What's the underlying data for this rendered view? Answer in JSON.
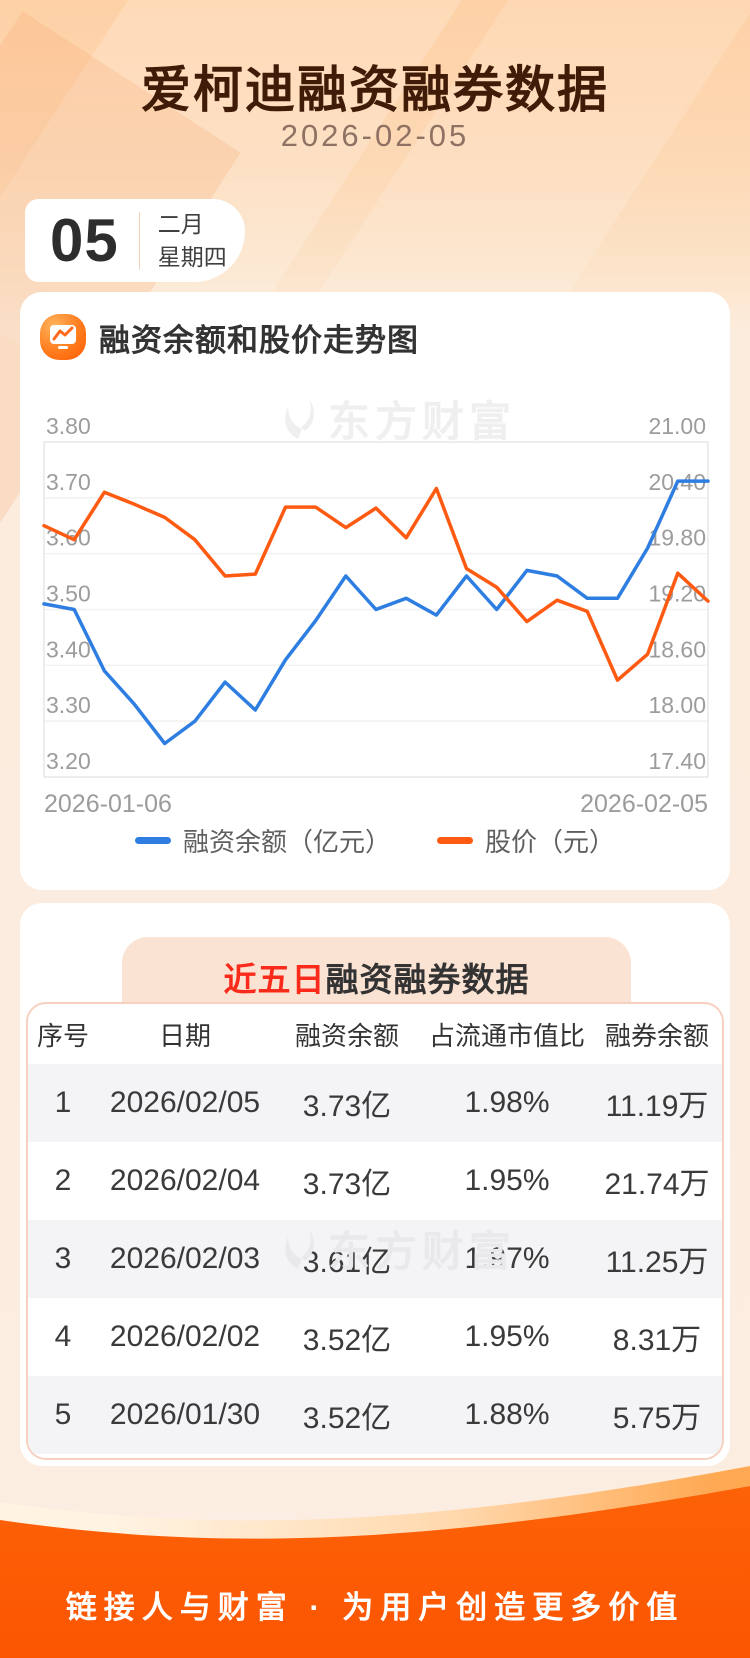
{
  "header": {
    "title": "爱柯迪融资融券数据",
    "date": "2026-02-05"
  },
  "date_card": {
    "day": "05",
    "month": "二月",
    "weekday": "星期四"
  },
  "chart_section": {
    "title": "融资余额和股价走势图",
    "watermark": "东方财富",
    "x_start_label": "2026-01-06",
    "x_end_label": "2026-02-05",
    "legend": [
      {
        "label": "融资余额（亿元）",
        "color": "#2e7ee2"
      },
      {
        "label": "股价（元）",
        "color": "#ff5a11"
      }
    ]
  },
  "chart_data": {
    "type": "line",
    "title": "融资余额和股价走势图",
    "grid": true,
    "legend_position": "bottom",
    "x": [
      "2026-01-06",
      "2026-01-07",
      "2026-01-08",
      "2026-01-09",
      "2026-01-12",
      "2026-01-13",
      "2026-01-14",
      "2026-01-15",
      "2026-01-16",
      "2026-01-19",
      "2026-01-20",
      "2026-01-21",
      "2026-01-22",
      "2026-01-23",
      "2026-01-26",
      "2026-01-27",
      "2026-01-28",
      "2026-01-29",
      "2026-01-30",
      "2026-02-02",
      "2026-02-03",
      "2026-02-04",
      "2026-02-05"
    ],
    "x_tick_labels": [
      "2026-01-06",
      "2026-02-05"
    ],
    "left_axis": {
      "label": "融资余额（亿元）",
      "min": 3.2,
      "max": 3.8,
      "ticks": [
        "3.80",
        "3.70",
        "3.60",
        "3.50",
        "3.40",
        "3.30",
        "3.20"
      ]
    },
    "right_axis": {
      "label": "股价（元）",
      "min": 17.4,
      "max": 21.0,
      "ticks": [
        "21.00",
        "20.40",
        "19.80",
        "19.20",
        "18.60",
        "18.00",
        "17.40"
      ]
    },
    "series": [
      {
        "name": "融资余额（亿元）",
        "axis": "left",
        "color": "#2e7ee2",
        "values": [
          3.51,
          3.5,
          3.39,
          3.33,
          3.26,
          3.3,
          3.37,
          3.32,
          3.41,
          3.48,
          3.56,
          3.5,
          3.52,
          3.49,
          3.56,
          3.5,
          3.57,
          3.56,
          3.52,
          3.52,
          3.61,
          3.73,
          3.73
        ]
      },
      {
        "name": "股价（元）",
        "axis": "right",
        "color": "#ff5a11",
        "values": [
          20.1,
          19.95,
          20.46,
          20.33,
          20.19,
          19.95,
          19.56,
          19.58,
          20.3,
          20.3,
          20.08,
          20.29,
          19.97,
          20.5,
          19.64,
          19.44,
          19.07,
          19.3,
          19.18,
          18.44,
          18.72,
          19.59,
          19.29
        ]
      }
    ]
  },
  "table_section": {
    "title_highlight": "近五日",
    "title_rest": "融资融券数据",
    "watermark": "东方财富",
    "columns": [
      "序号",
      "日期",
      "融资余额",
      "占流通市值比",
      "融券余额"
    ],
    "rows": [
      [
        "1",
        "2026/02/05",
        "3.73亿",
        "1.98%",
        "11.19万"
      ],
      [
        "2",
        "2026/02/04",
        "3.73亿",
        "1.95%",
        "21.74万"
      ],
      [
        "3",
        "2026/02/03",
        "3.61亿",
        "1.97%",
        "11.25万"
      ],
      [
        "4",
        "2026/02/02",
        "3.52亿",
        "1.95%",
        "8.31万"
      ],
      [
        "5",
        "2026/01/30",
        "3.52亿",
        "1.88%",
        "5.75万"
      ]
    ]
  },
  "footer": {
    "slogan": "链接人与财富 · 为用户创造更多价值"
  },
  "colors": {
    "blue_line": "#2e7ee2",
    "orange_line": "#ff5a11",
    "title_brown": "#401c08",
    "red_highlight": "#fa2b1a",
    "footer_orange": "#fc5c04",
    "grid_line": "#f1f1f1",
    "axis_text": "#9c9c9c",
    "row_alt_bg": "#f4f4f7",
    "table_border_pink": "#f7d0bf",
    "title_box_peach": "#fbe3d4"
  }
}
